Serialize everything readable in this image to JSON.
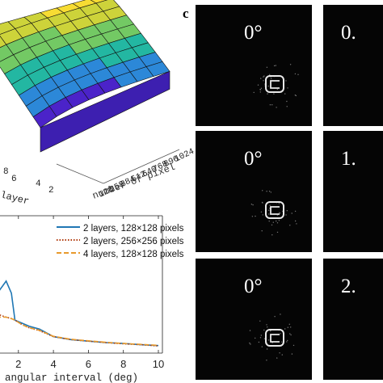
{
  "panel_c": {
    "letter": "c",
    "tiles": [
      {
        "angle": "0°"
      },
      {
        "angle": "0."
      },
      {
        "angle": "0°"
      },
      {
        "angle": "1."
      },
      {
        "angle": "0°"
      },
      {
        "angle": "2."
      }
    ]
  },
  "chart_data": [
    {
      "type": "surface",
      "x_label": "number of pixel",
      "x_ticks": [
        "128",
        "258",
        "384",
        "512",
        "640",
        "768",
        "896",
        "1024"
      ],
      "y_label": "layer",
      "y_ticks": [
        "8",
        "6",
        "4",
        "2"
      ],
      "colors": [
        "#4b23c9",
        "#2c88d8",
        "#23b7a2",
        "#73c964",
        "#cdd33a",
        "#f7dc33"
      ]
    },
    {
      "type": "line",
      "xlabel": "angular interval (deg)",
      "x_ticks": [
        "2",
        "4",
        "6",
        "8",
        "10"
      ],
      "xlim": [
        0.3,
        10
      ],
      "grid": false,
      "legend_position": "top-right",
      "series": [
        {
          "name": "2 layers, 128×128 pixels",
          "color": "#1f77b4",
          "style": "solid",
          "x": [
            0.3,
            0.8,
            1.3,
            1.6,
            1.8,
            2.2,
            2.6,
            3.2,
            4,
            5,
            6,
            7,
            8,
            9,
            10
          ],
          "y": [
            0.17,
            0.2,
            0.24,
            0.2,
            0.11,
            0.1,
            0.09,
            0.08,
            0.055,
            0.045,
            0.04,
            0.035,
            0.032,
            0.028,
            0.025
          ]
        },
        {
          "name": "2 layers, 256×256 pixels",
          "color": "#b03a0c",
          "style": "dotted",
          "x": [
            0.3,
            0.8,
            1.3,
            1.6,
            1.8,
            2.2,
            2.6,
            3.2,
            4,
            5,
            6,
            7,
            8,
            9,
            10
          ],
          "y": [
            0.13,
            0.13,
            0.12,
            0.115,
            0.11,
            0.095,
            0.085,
            0.075,
            0.055,
            0.045,
            0.04,
            0.035,
            0.031,
            0.028,
            0.024
          ]
        },
        {
          "name": "4 layers, 128×128 pixels",
          "color": "#e89a2c",
          "style": "dashed",
          "x": [
            0.3,
            0.8,
            1.3,
            1.6,
            1.8,
            2.2,
            2.6,
            3.2,
            4,
            5,
            6,
            7,
            8,
            9,
            10
          ],
          "y": [
            0.12,
            0.12,
            0.12,
            0.115,
            0.11,
            0.095,
            0.085,
            0.076,
            0.056,
            0.046,
            0.041,
            0.036,
            0.032,
            0.029,
            0.026
          ]
        }
      ]
    }
  ]
}
